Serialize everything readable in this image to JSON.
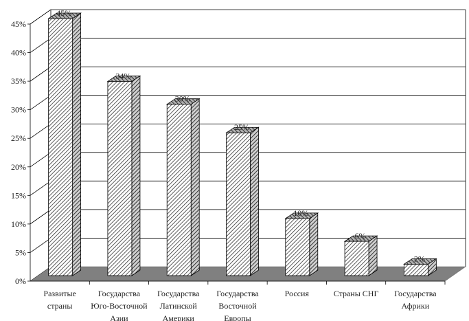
{
  "chart_data": {
    "type": "bar",
    "title": "",
    "xlabel": "",
    "ylabel": "",
    "ylim": [
      0,
      45
    ],
    "y_ticks": [
      "0%",
      "5%",
      "10%",
      "15%",
      "20%",
      "25%",
      "30%",
      "35%",
      "40%",
      "45%"
    ],
    "grid": true,
    "legend": "none",
    "style": "3d-column, hatched",
    "categories": [
      [
        "Развитые",
        "страны"
      ],
      [
        "Государства",
        "Юго-Восточной",
        "Азии"
      ],
      [
        "Государства",
        "Латинской",
        "Америки"
      ],
      [
        "Государства",
        "Восточной",
        "Европы"
      ],
      [
        "Россия"
      ],
      [
        "Страны СНГ"
      ],
      [
        "Государства",
        "Африки"
      ]
    ],
    "values": [
      45,
      34,
      30,
      25,
      10,
      6,
      2
    ],
    "data_labels": [
      "45%",
      "34%",
      "30%",
      "25%",
      "10%",
      "6%",
      "2%"
    ],
    "colors": {
      "bar_front": "#ffffff",
      "hatch": "#333333",
      "floor": "#808080",
      "grid": "#000000"
    }
  }
}
